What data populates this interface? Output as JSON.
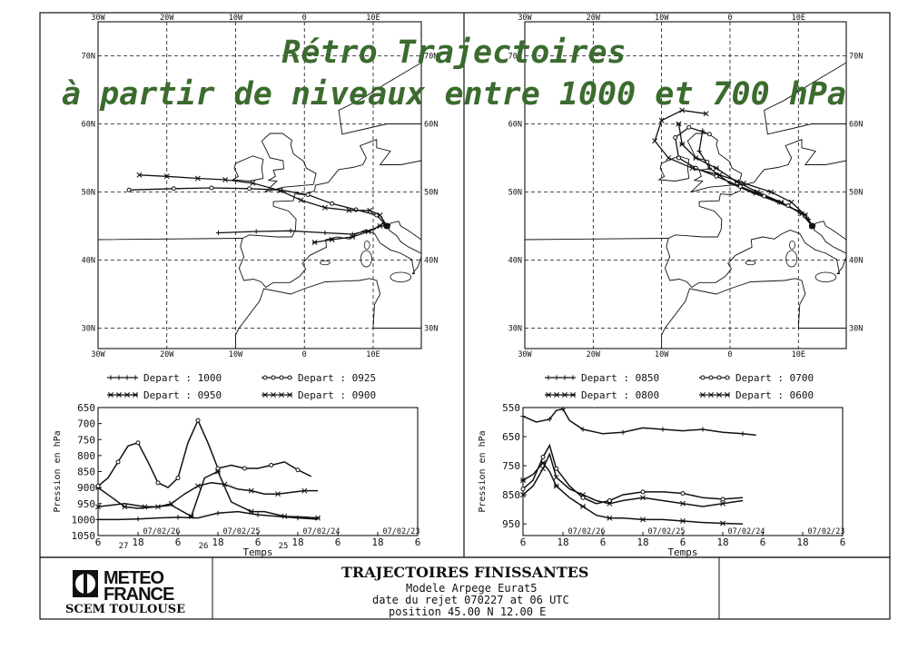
{
  "title": {
    "line1": "Rétro Trajectoires",
    "line2": "à partir de niveaux entre 1000 et 700 hPa"
  },
  "maps": [
    {
      "lon_ticks": [
        "30W",
        "20W",
        "10W",
        "0",
        "10E"
      ],
      "lat_ticks": [
        "70N",
        "60N",
        "50N",
        "40N",
        "30N"
      ],
      "trajectories": [
        {
          "legend": "Depart : 1000",
          "marker": "plus",
          "points": [
            [
              -12.5,
              44
            ],
            [
              -7,
              44.2
            ],
            [
              -2,
              44.3
            ],
            [
              3,
              44
            ],
            [
              7,
              43.8
            ],
            [
              10,
              44.5
            ],
            [
              11.5,
              45.4
            ],
            [
              12,
              45
            ]
          ]
        },
        {
          "legend": "Depart : 0950",
          "marker": "star",
          "points": [
            [
              1.5,
              42.6
            ],
            [
              4,
              43
            ],
            [
              7,
              43.4
            ],
            [
              9.3,
              44.2
            ],
            [
              11,
              45
            ],
            [
              12,
              45
            ]
          ]
        },
        {
          "legend": "Depart : 0925",
          "marker": "circle",
          "points": [
            [
              -25.5,
              50.3
            ],
            [
              -19,
              50.5
            ],
            [
              -13.5,
              50.6
            ],
            [
              -8,
              50.5
            ],
            [
              -3.5,
              50.3
            ],
            [
              0.5,
              49.6
            ],
            [
              4,
              48.3
            ],
            [
              7.5,
              47.4
            ],
            [
              10.5,
              46.6
            ],
            [
              12,
              45
            ]
          ]
        },
        {
          "legend": "Depart : 0900",
          "marker": "x",
          "points": [
            [
              -24,
              52.5
            ],
            [
              -20,
              52.3
            ],
            [
              -15.5,
              52
            ],
            [
              -11.5,
              51.8
            ],
            [
              -7.5,
              51.3
            ],
            [
              -3.5,
              50.2
            ],
            [
              -0.5,
              48.8
            ],
            [
              3,
              47.7
            ],
            [
              6.5,
              47.3
            ],
            [
              9.5,
              47.3
            ],
            [
              11,
              46.6
            ],
            [
              12,
              45
            ]
          ]
        }
      ]
    },
    {
      "lon_ticks": [
        "30W",
        "20W",
        "10W",
        "0",
        "10E"
      ],
      "lat_ticks": [
        "70N",
        "60N",
        "50N",
        "40N",
        "30N"
      ],
      "trajectories": [
        {
          "legend": "Depart : 0850",
          "marker": "plus",
          "points": [
            [
              -4,
              59
            ],
            [
              -4.5,
              56
            ],
            [
              -3,
              53.5
            ],
            [
              0,
              51.3
            ],
            [
              3.5,
              49.8
            ],
            [
              7,
              48.5
            ],
            [
              10,
              47.2
            ],
            [
              11.5,
              46
            ],
            [
              12,
              45
            ]
          ]
        },
        {
          "legend": "Depart : 0800",
          "marker": "star",
          "points": [
            [
              -7.5,
              60
            ],
            [
              -7,
              57
            ],
            [
              -5,
              55
            ],
            [
              -2,
              53.5
            ],
            [
              1,
              51.5
            ],
            [
              4,
              50
            ],
            [
              7.5,
              48.5
            ],
            [
              10.5,
              46.8
            ],
            [
              12,
              45
            ]
          ]
        },
        {
          "legend": "Depart : 0700",
          "marker": "circle",
          "points": [
            [
              -3,
              58.5
            ],
            [
              -6,
              59.5
            ],
            [
              -8,
              58
            ],
            [
              -7.5,
              55
            ],
            [
              -5,
              53.5
            ],
            [
              -2,
              52.3
            ],
            [
              1.5,
              50.8
            ],
            [
              5,
              49.4
            ],
            [
              8.5,
              48
            ],
            [
              11,
              46.5
            ],
            [
              12,
              45
            ]
          ]
        },
        {
          "legend": "Depart : 0600",
          "marker": "x",
          "points": [
            [
              -3.5,
              61.5
            ],
            [
              -7,
              62
            ],
            [
              -10,
              60.5
            ],
            [
              -11,
              57.5
            ],
            [
              -9,
              55
            ],
            [
              -5.5,
              53.5
            ],
            [
              -1.5,
              52.5
            ],
            [
              2,
              51.3
            ],
            [
              6,
              50
            ],
            [
              9,
              48.5
            ],
            [
              11,
              46.6
            ],
            [
              12,
              45
            ]
          ]
        }
      ]
    }
  ],
  "pressure_charts": [
    {
      "ylabel": "Pression en hPa",
      "xlabel": "Temps",
      "yticks": [
        "650",
        "700",
        "750",
        "800",
        "850",
        "900",
        "950",
        "1000",
        "1050"
      ],
      "xticks": [
        "6",
        "18",
        "6",
        "18",
        "6",
        "18",
        "6",
        "18",
        "6"
      ],
      "dates": [
        "07/02/26",
        "07/02/25",
        "07/02/24",
        "07/02/23"
      ],
      "handwritten": [
        "27",
        "26",
        "25"
      ],
      "series": [
        {
          "name": "1000",
          "values": [
            [
              0,
              1000
            ],
            [
              6,
              1000
            ],
            [
              12,
              998
            ],
            [
              18,
              995
            ],
            [
              24,
              993
            ],
            [
              30,
              995
            ],
            [
              36,
              980
            ],
            [
              42,
              975
            ],
            [
              48,
              985
            ],
            [
              54,
              990
            ],
            [
              60,
              995
            ],
            [
              66,
              999
            ]
          ]
        },
        {
          "name": "0950",
          "values": [
            [
              0,
              900
            ],
            [
              4,
              930
            ],
            [
              8,
              960
            ],
            [
              12,
              965
            ],
            [
              18,
              960
            ],
            [
              22,
              955
            ],
            [
              28,
              990
            ],
            [
              32,
              870
            ],
            [
              36,
              850
            ],
            [
              40,
              945
            ],
            [
              46,
              975
            ],
            [
              50,
              975
            ],
            [
              56,
              990
            ],
            [
              62,
              992
            ],
            [
              66,
              995
            ]
          ]
        },
        {
          "name": "0925",
          "values": [
            [
              0,
              895
            ],
            [
              3,
              870
            ],
            [
              6,
              820
            ],
            [
              9,
              770
            ],
            [
              12,
              760
            ],
            [
              15,
              820
            ],
            [
              18,
              885
            ],
            [
              21,
              900
            ],
            [
              24,
              870
            ],
            [
              27,
              760
            ],
            [
              30,
              690
            ],
            [
              33,
              760
            ],
            [
              36,
              840
            ],
            [
              40,
              830
            ],
            [
              44,
              840
            ],
            [
              48,
              840
            ],
            [
              52,
              830
            ],
            [
              56,
              820
            ],
            [
              60,
              845
            ],
            [
              64,
              865
            ]
          ]
        },
        {
          "name": "0900",
          "values": [
            [
              0,
              960
            ],
            [
              8,
              950
            ],
            [
              14,
              960
            ],
            [
              18,
              960
            ],
            [
              22,
              950
            ],
            [
              26,
              920
            ],
            [
              30,
              895
            ],
            [
              34,
              885
            ],
            [
              38,
              890
            ],
            [
              42,
              905
            ],
            [
              46,
              910
            ],
            [
              50,
              920
            ],
            [
              54,
              920
            ],
            [
              58,
              915
            ],
            [
              62,
              910
            ],
            [
              66,
              910
            ]
          ]
        }
      ]
    },
    {
      "ylabel": "Pression en hPa",
      "xlabel": "Temps",
      "yticks": [
        "550",
        "650",
        "750",
        "850",
        "950"
      ],
      "xticks": [
        "6",
        "18",
        "6",
        "18",
        "6",
        "18",
        "6",
        "18",
        "6"
      ],
      "dates": [
        "07/02/26",
        "07/02/25",
        "07/02/24",
        "07/02/23"
      ],
      "series": [
        {
          "name": "0850",
          "values": [
            [
              0,
              580
            ],
            [
              4,
              600
            ],
            [
              8,
              590
            ],
            [
              10,
              560
            ],
            [
              12,
              555
            ],
            [
              14,
              595
            ],
            [
              18,
              625
            ],
            [
              24,
              640
            ],
            [
              30,
              635
            ],
            [
              36,
              620
            ],
            [
              42,
              625
            ],
            [
              48,
              630
            ],
            [
              54,
              625
            ],
            [
              60,
              635
            ],
            [
              66,
              640
            ],
            [
              70,
              645
            ]
          ]
        },
        {
          "name": "0800",
          "values": [
            [
              0,
              800
            ],
            [
              3,
              780
            ],
            [
              6,
              740
            ],
            [
              8,
              770
            ],
            [
              10,
              820
            ],
            [
              14,
              860
            ],
            [
              18,
              890
            ],
            [
              22,
              920
            ],
            [
              26,
              930
            ],
            [
              30,
              930
            ],
            [
              36,
              935
            ],
            [
              42,
              935
            ],
            [
              48,
              940
            ],
            [
              54,
              945
            ],
            [
              60,
              948
            ],
            [
              66,
              950
            ]
          ]
        },
        {
          "name": "0700",
          "values": [
            [
              0,
              830
            ],
            [
              3,
              800
            ],
            [
              6,
              720
            ],
            [
              8,
              680
            ],
            [
              10,
              760
            ],
            [
              14,
              820
            ],
            [
              18,
              860
            ],
            [
              22,
              880
            ],
            [
              26,
              870
            ],
            [
              30,
              850
            ],
            [
              36,
              840
            ],
            [
              42,
              840
            ],
            [
              48,
              845
            ],
            [
              54,
              860
            ],
            [
              60,
              865
            ],
            [
              66,
              860
            ]
          ]
        },
        {
          "name": "0600",
          "values": [
            [
              0,
              850
            ],
            [
              3,
              820
            ],
            [
              6,
              760
            ],
            [
              8,
              710
            ],
            [
              10,
              790
            ],
            [
              14,
              830
            ],
            [
              18,
              850
            ],
            [
              22,
              870
            ],
            [
              26,
              880
            ],
            [
              30,
              870
            ],
            [
              36,
              860
            ],
            [
              42,
              870
            ],
            [
              48,
              880
            ],
            [
              54,
              890
            ],
            [
              60,
              880
            ],
            [
              66,
              870
            ]
          ]
        }
      ]
    }
  ],
  "footer": {
    "logo_line1": "METEO",
    "logo_line2": "FRANCE",
    "logo_line3": "SCEM TOULOUSE",
    "heading": "TRAJECTOIRES FINISSANTES",
    "model": "Modele Arpege Eurat5",
    "release": "date du rejet 070227 at 06 UTC",
    "position": "position   45.00 N    12.00 E"
  }
}
